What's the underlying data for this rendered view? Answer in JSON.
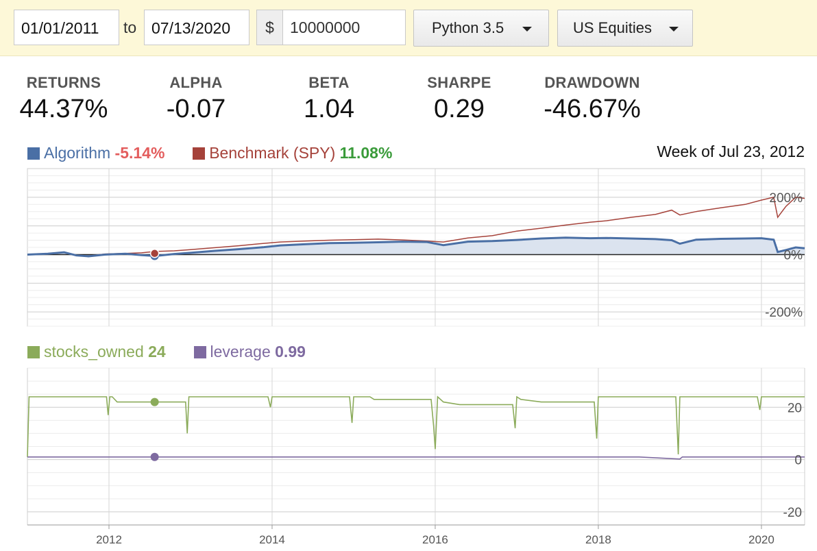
{
  "toolbar": {
    "start_date": "01/01/2011",
    "to_label": "to",
    "end_date": "07/13/2020",
    "currency_symbol": "$",
    "capital": "10000000",
    "language": "Python 3.5",
    "universe": "US Equities"
  },
  "stats": [
    {
      "label": "RETURNS",
      "value": "44.37%"
    },
    {
      "label": "ALPHA",
      "value": "-0.07"
    },
    {
      "label": "BETA",
      "value": "1.04"
    },
    {
      "label": "SHARPE",
      "value": "0.29"
    },
    {
      "label": "DRAWDOWN",
      "value": "-46.67%"
    }
  ],
  "hover_label": "Week of Jul 23, 2012",
  "colors": {
    "algorithm": "#4a6fa5",
    "benchmark": "#a5423a",
    "stocks_owned": "#8bab5a",
    "leverage": "#7e6aa0",
    "negative": "#e35d5d",
    "positive": "#3a9b3a"
  },
  "chart_data": [
    {
      "type": "line",
      "legend": [
        {
          "name": "Algorithm",
          "value": "-5.14%"
        },
        {
          "name": "Benchmark (SPY)",
          "value": "11.08%"
        }
      ],
      "x_ticks": [
        "2012",
        "2014",
        "2016",
        "2018",
        "2020"
      ],
      "y_ticks": [
        "200%",
        "0%",
        "-200%"
      ],
      "x_range": [
        2011.0,
        2020.53
      ],
      "ylim": [
        -250,
        300
      ],
      "series": [
        {
          "name": "Algorithm",
          "x": [
            2011.0,
            2011.25,
            2011.45,
            2011.6,
            2011.75,
            2011.95,
            2012.2,
            2012.4,
            2012.57,
            2012.8,
            2013.0,
            2013.3,
            2013.6,
            2013.9,
            2014.1,
            2014.4,
            2014.7,
            2015.0,
            2015.3,
            2015.6,
            2015.9,
            2016.1,
            2016.4,
            2016.7,
            2017.0,
            2017.3,
            2017.6,
            2017.9,
            2018.1,
            2018.4,
            2018.7,
            2018.9,
            2019.0,
            2019.2,
            2019.5,
            2019.8,
            2020.0,
            2020.15,
            2020.2,
            2020.3,
            2020.42,
            2020.53
          ],
          "values": [
            0,
            3,
            8,
            -3,
            -6,
            0,
            3,
            -2,
            -5,
            2,
            6,
            13,
            19,
            26,
            32,
            36,
            40,
            41,
            43,
            45,
            44,
            33,
            45,
            47,
            51,
            56,
            59,
            57,
            58,
            56,
            54,
            50,
            38,
            52,
            55,
            56,
            57,
            52,
            9,
            16,
            25,
            22
          ]
        },
        {
          "name": "Benchmark (SPY)",
          "x": [
            2011.0,
            2011.25,
            2011.45,
            2011.6,
            2011.75,
            2011.95,
            2012.2,
            2012.4,
            2012.57,
            2012.8,
            2013.0,
            2013.3,
            2013.6,
            2013.9,
            2014.1,
            2014.4,
            2014.7,
            2015.0,
            2015.3,
            2015.6,
            2015.9,
            2016.1,
            2016.4,
            2016.7,
            2017.0,
            2017.3,
            2017.6,
            2017.9,
            2018.1,
            2018.4,
            2018.7,
            2018.9,
            2019.0,
            2019.2,
            2019.5,
            2019.8,
            2020.0,
            2020.15,
            2020.2,
            2020.3,
            2020.42,
            2020.53
          ],
          "values": [
            0,
            4,
            7,
            -4,
            -5,
            2,
            4,
            6,
            11,
            13,
            17,
            24,
            31,
            39,
            44,
            47,
            50,
            52,
            54,
            51,
            47,
            44,
            58,
            66,
            82,
            92,
            103,
            113,
            118,
            130,
            140,
            155,
            138,
            150,
            163,
            175,
            190,
            200,
            130,
            168,
            200,
            196
          ]
        }
      ]
    },
    {
      "type": "line",
      "legend": [
        {
          "name": "stocks_owned",
          "value": "24"
        },
        {
          "name": "leverage",
          "value": "0.99"
        }
      ],
      "x_ticks": [
        "2012",
        "2014",
        "2016",
        "2018",
        "2020"
      ],
      "y_ticks": [
        "20",
        "0",
        "-20"
      ],
      "x_range": [
        2011.0,
        2020.53
      ],
      "ylim": [
        -25,
        35
      ],
      "series": [
        {
          "name": "stocks_owned",
          "x": [
            2011.0,
            2011.02,
            2011.97,
            2011.99,
            2012.01,
            2012.04,
            2012.1,
            2012.2,
            2012.94,
            2012.96,
            2012.98,
            2013.02,
            2013.95,
            2013.98,
            2014.0,
            2014.03,
            2014.95,
            2014.98,
            2015.0,
            2015.03,
            2015.2,
            2015.25,
            2015.95,
            2015.98,
            2016.0,
            2016.03,
            2016.1,
            2016.3,
            2016.95,
            2016.98,
            2017.0,
            2017.05,
            2017.3,
            2017.95,
            2017.98,
            2018.0,
            2018.03,
            2018.95,
            2018.98,
            2019.0,
            2019.03,
            2019.95,
            2019.98,
            2020.0,
            2020.03,
            2020.53
          ],
          "values": [
            1,
            24,
            24,
            17,
            24,
            24,
            22,
            22,
            22,
            10,
            24,
            24,
            24,
            20,
            24,
            24,
            24,
            14,
            24,
            24,
            24,
            23,
            23,
            13,
            4,
            24,
            22,
            21,
            21,
            12,
            24,
            23,
            22,
            22,
            8,
            24,
            24,
            24,
            2,
            24,
            24,
            24,
            19,
            24,
            24,
            24
          ]
        },
        {
          "name": "leverage",
          "x": [
            2011.0,
            2012.0,
            2013.0,
            2014.0,
            2015.0,
            2016.0,
            2017.0,
            2018.0,
            2018.5,
            2019.0,
            2019.03,
            2019.5,
            2020.0,
            2020.53
          ],
          "values": [
            1,
            1,
            1,
            1,
            1,
            1,
            1,
            1,
            1,
            0.2,
            1,
            1,
            1,
            0.99
          ]
        }
      ]
    }
  ]
}
